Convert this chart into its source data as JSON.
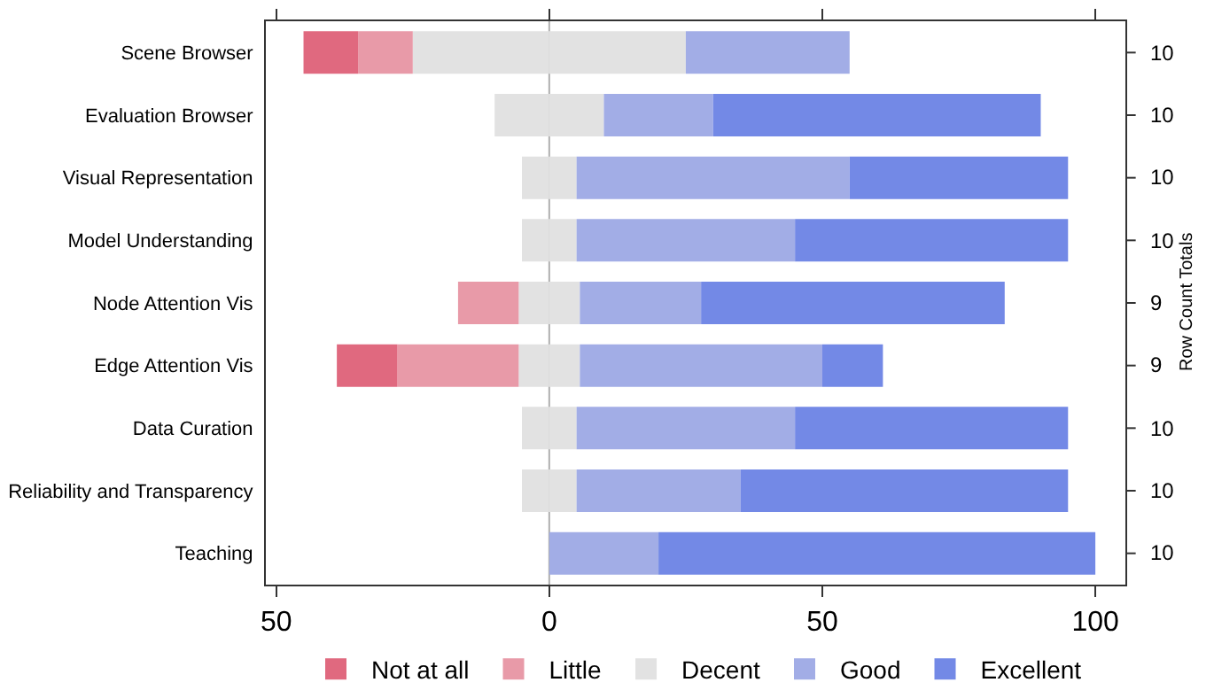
{
  "chart_data": {
    "type": "bar",
    "orientation": "horizontal",
    "stacked": true,
    "categories": [
      "Scene Browser",
      "Evaluation Browser",
      "Visual Representation",
      "Model Understanding",
      "Node Attention Vis",
      "Edge Attention Vis",
      "Data Curation",
      "Reliability and Transparency",
      "Teaching"
    ],
    "series": [
      {
        "color": "#e2e2e2",
        "values": [
          -25,
          -10,
          -5,
          -5,
          -5.6,
          -5.6,
          -5,
          -5,
          0
        ]
      },
      {
        "name": "Little",
        "color": "#e89aa8",
        "values": [
          -10,
          0,
          0,
          0,
          -11.1,
          -22.2,
          0,
          0,
          0
        ]
      },
      {
        "name": "Not at all",
        "color": "#e0697f",
        "values": [
          -10,
          0,
          0,
          0,
          0,
          -11.1,
          0,
          0,
          0
        ]
      },
      {
        "name": "Decent",
        "color": "#e2e2e2",
        "values": [
          25,
          10,
          5,
          5,
          5.6,
          5.6,
          5,
          5,
          0
        ]
      },
      {
        "name": "Good",
        "color": "#a2ade6",
        "values": [
          30,
          20,
          50,
          40,
          22.2,
          44.4,
          40,
          30,
          20
        ]
      },
      {
        "name": "Excellent",
        "color": "#7389e6",
        "values": [
          0,
          60,
          40,
          50,
          55.6,
          11.1,
          50,
          60,
          80
        ]
      }
    ],
    "annotations": [
      "10",
      "10",
      "10",
      "10",
      "9",
      "9",
      "10",
      "10",
      "10"
    ],
    "y2label": "Row Count Totals",
    "xlim": [
      -51.9,
      105.5
    ],
    "xticks": [
      {
        "value": -50,
        "label": "50"
      },
      0,
      50,
      100
    ],
    "ref_lines": [
      {
        "axis": "x",
        "value": 0,
        "color": "#b0b0b0"
      }
    ],
    "legend": "bottom"
  }
}
